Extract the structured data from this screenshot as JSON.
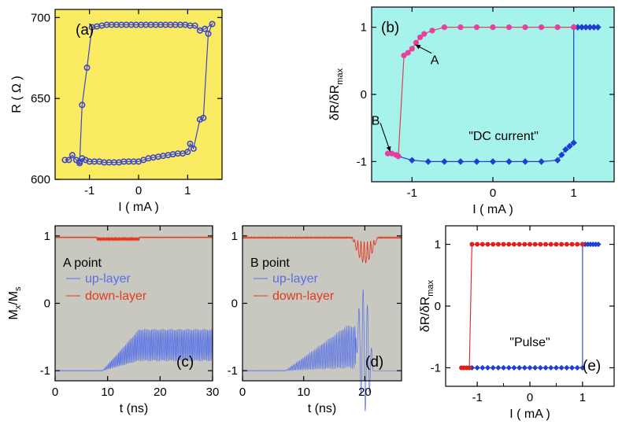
{
  "chart_data": [
    {
      "id": "a",
      "type": "scatter",
      "panel_label": "(a)",
      "xlabel": "I ( mA )",
      "ylabel": "R ( Ω )",
      "xlim": [
        -1.7,
        1.7
      ],
      "ylim": [
        600,
        705
      ],
      "x_ticks": [
        -1,
        0,
        1
      ],
      "y_ticks": [
        600,
        650,
        700
      ],
      "background": "#fbeb63",
      "marker_color": "#3c46c8",
      "series": [
        {
          "values": [
            [
              -1.5,
              612
            ],
            [
              -1.42,
              612
            ],
            [
              -1.35,
              615
            ],
            [
              -1.27,
              612
            ],
            [
              -1.2,
              610
            ],
            [
              -1.15,
              613
            ],
            [
              -1.08,
              612
            ],
            [
              -1.0,
              611
            ],
            [
              -0.9,
              611
            ],
            [
              -0.8,
              611
            ],
            [
              -0.7,
              610.5
            ],
            [
              -0.6,
              610.5
            ],
            [
              -0.5,
              610.5
            ],
            [
              -0.4,
              610.5
            ],
            [
              -0.3,
              611
            ],
            [
              -0.2,
              611
            ],
            [
              -0.1,
              611
            ],
            [
              0.0,
              611
            ],
            [
              0.1,
              612
            ],
            [
              0.2,
              613
            ],
            [
              0.3,
              613.5
            ],
            [
              0.4,
              614
            ],
            [
              0.5,
              614.5
            ],
            [
              0.6,
              615
            ],
            [
              0.7,
              615.5
            ],
            [
              0.8,
              616
            ],
            [
              0.9,
              616
            ],
            [
              1.0,
              617
            ],
            [
              1.05,
              622
            ],
            [
              1.12,
              619
            ],
            [
              1.25,
              637
            ],
            [
              1.32,
              638
            ],
            [
              1.42,
              690
            ],
            [
              1.5,
              696
            ],
            [
              1.35,
              693
            ],
            [
              1.25,
              692
            ],
            [
              1.15,
              695
            ],
            [
              1.05,
              695
            ],
            [
              0.95,
              695.5
            ],
            [
              0.85,
              695.5
            ],
            [
              0.75,
              695.5
            ],
            [
              0.65,
              695.5
            ],
            [
              0.55,
              695.5
            ],
            [
              0.45,
              695.5
            ],
            [
              0.35,
              695.5
            ],
            [
              0.25,
              695.5
            ],
            [
              0.15,
              695.5
            ],
            [
              0.05,
              695.5
            ],
            [
              -0.05,
              695.5
            ],
            [
              -0.15,
              695.5
            ],
            [
              -0.25,
              695.5
            ],
            [
              -0.35,
              695.5
            ],
            [
              -0.45,
              695.5
            ],
            [
              -0.55,
              695.5
            ],
            [
              -0.65,
              695.5
            ],
            [
              -0.75,
              695
            ],
            [
              -0.85,
              694.5
            ],
            [
              -0.95,
              694
            ],
            [
              -1.05,
              669
            ],
            [
              -1.15,
              646
            ],
            [
              -1.2,
              611
            ]
          ]
        }
      ]
    },
    {
      "id": "b",
      "type": "line",
      "panel_label": "(b)",
      "xlabel": "I ( mA )",
      "ylabel": "δR/δR",
      "ylabel_sub": "max",
      "xlim": [
        -1.5,
        1.5
      ],
      "ylim": [
        -1.3,
        1.3
      ],
      "x_ticks": [
        -1,
        0,
        1
      ],
      "y_ticks": [
        -1,
        0,
        1
      ],
      "background": "#a6f3ec",
      "annotations": [
        {
          "text": "A",
          "x": -0.72,
          "y": 0.45,
          "arrow_to": [
            -0.96,
            0.74
          ]
        },
        {
          "text": "B",
          "x": -1.45,
          "y": -0.45,
          "arrow_to": [
            -1.27,
            -0.85
          ]
        },
        {
          "text": "\"DC current\"",
          "x": -0.3,
          "y": -0.68
        }
      ],
      "series": [
        {
          "color": "#e8409a",
          "line_color": "#e04050",
          "marker": "circle",
          "values": [
            [
              -1.3,
              -0.88
            ],
            [
              -1.25,
              -0.88
            ],
            [
              -1.2,
              -0.9
            ],
            [
              -1.17,
              -0.92
            ],
            [
              -1.1,
              0.58
            ],
            [
              -1.05,
              0.62
            ],
            [
              -1.0,
              0.68
            ],
            [
              -0.95,
              0.77
            ],
            [
              -0.9,
              0.85
            ],
            [
              -0.85,
              0.9
            ],
            [
              -0.75,
              0.95
            ],
            [
              -0.6,
              1.0
            ],
            [
              -0.4,
              1.0
            ],
            [
              -0.2,
              1.0
            ],
            [
              0.0,
              1.0
            ],
            [
              0.2,
              1.0
            ],
            [
              0.4,
              1.0
            ],
            [
              0.6,
              1.0
            ],
            [
              0.8,
              1.0
            ],
            [
              1.0,
              1.0
            ]
          ]
        },
        {
          "color": "#1f3fd0",
          "line_color": "#1f3fd0",
          "marker": "diamond",
          "values": [
            [
              -1.17,
              -0.92
            ],
            [
              -1.0,
              -0.98
            ],
            [
              -0.8,
              -1.0
            ],
            [
              -0.6,
              -1.0
            ],
            [
              -0.4,
              -1.0
            ],
            [
              -0.2,
              -1.0
            ],
            [
              0.0,
              -1.0
            ],
            [
              0.2,
              -1.0
            ],
            [
              0.4,
              -1.0
            ],
            [
              0.6,
              -1.0
            ],
            [
              0.8,
              -0.98
            ],
            [
              0.85,
              -0.9
            ],
            [
              0.9,
              -0.82
            ],
            [
              0.95,
              -0.77
            ],
            [
              1.0,
              -0.72
            ],
            [
              1.0,
              1.0
            ],
            [
              1.05,
              1.0
            ],
            [
              1.1,
              1.0
            ],
            [
              1.15,
              1.0
            ],
            [
              1.2,
              1.0
            ],
            [
              1.25,
              1.0
            ],
            [
              1.3,
              1.0
            ]
          ]
        }
      ]
    },
    {
      "id": "c",
      "type": "line",
      "panel_label": "(c)",
      "point_label": "A point",
      "xlabel": "t (ns)",
      "ylabel": "M",
      "ylabel_sub1": "x",
      "ylabel_mid": "/M",
      "ylabel_sub2": "s",
      "xlim": [
        0,
        30
      ],
      "ylim": [
        -1.15,
        1.15
      ],
      "x_ticks": [
        0,
        10,
        20,
        30
      ],
      "y_ticks": [
        -1,
        0,
        1
      ],
      "background": "#c8c8c0",
      "series": [
        {
          "name": "up-layer",
          "color": "#5570e8",
          "behavior": "oscillation growing from -1 (t≈10) to a band around -0.4 to -0.85 (t≥16)"
        },
        {
          "name": "down-layer",
          "color": "#e23a1e",
          "behavior": "near 1 with small ripple, slight dip around t≈12"
        }
      ]
    },
    {
      "id": "d",
      "type": "line",
      "panel_label": "(d)",
      "point_label": "B point",
      "xlabel": "t (ns)",
      "xlim": [
        0,
        26
      ],
      "ylim": [
        -1.15,
        1.15
      ],
      "x_ticks": [
        0,
        10,
        20
      ],
      "y_ticks": [
        -1,
        0,
        1
      ],
      "background": "#c8c8c0",
      "series": [
        {
          "name": "up-layer",
          "color": "#5570e8",
          "behavior": "oscillation growing from -1 to around -0.3, switching near t≈20 with large excursions to ~0.5"
        },
        {
          "name": "down-layer",
          "color": "#e23a1e",
          "behavior": "near 1, dips around t≈19-21 then returns"
        }
      ]
    },
    {
      "id": "e",
      "type": "line",
      "panel_label": "(e)",
      "xlabel": "I ( mA )",
      "ylabel": "δR/δR",
      "ylabel_sub": "max",
      "xlim": [
        -1.6,
        1.6
      ],
      "ylim": [
        -1.3,
        1.3
      ],
      "x_ticks": [
        -1,
        0,
        1
      ],
      "x_minor_ticks": [
        -0.5,
        0.5
      ],
      "y_ticks": [
        -1,
        0,
        1
      ],
      "annotations": [
        {
          "text": "\"Pulse\"",
          "x": 0.0,
          "y": -0.65
        }
      ],
      "series": [
        {
          "color": "#e02020",
          "marker": "circle",
          "values": [
            [
              -1.3,
              -1.0
            ],
            [
              -1.25,
              -1.0
            ],
            [
              -1.2,
              -1.0
            ],
            [
              -1.15,
              -1.0
            ],
            [
              -1.1,
              1.0
            ],
            [
              -1.0,
              1.0
            ],
            [
              -0.9,
              1.0
            ],
            [
              -0.8,
              1.0
            ],
            [
              -0.7,
              1.0
            ],
            [
              -0.6,
              1.0
            ],
            [
              -0.5,
              1.0
            ],
            [
              -0.4,
              1.0
            ],
            [
              -0.3,
              1.0
            ],
            [
              -0.2,
              1.0
            ],
            [
              -0.1,
              1.0
            ],
            [
              0.0,
              1.0
            ],
            [
              0.1,
              1.0
            ],
            [
              0.2,
              1.0
            ],
            [
              0.3,
              1.0
            ],
            [
              0.4,
              1.0
            ],
            [
              0.5,
              1.0
            ],
            [
              0.6,
              1.0
            ],
            [
              0.7,
              1.0
            ],
            [
              0.8,
              1.0
            ],
            [
              0.9,
              1.0
            ],
            [
              1.0,
              1.0
            ]
          ]
        },
        {
          "color": "#1f3fd0",
          "marker": "diamond",
          "values": [
            [
              -1.1,
              -1.0
            ],
            [
              -1.0,
              -1.0
            ],
            [
              -0.9,
              -1.0
            ],
            [
              -0.8,
              -1.0
            ],
            [
              -0.7,
              -1.0
            ],
            [
              -0.6,
              -1.0
            ],
            [
              -0.5,
              -1.0
            ],
            [
              -0.4,
              -1.0
            ],
            [
              -0.3,
              -1.0
            ],
            [
              -0.2,
              -1.0
            ],
            [
              -0.1,
              -1.0
            ],
            [
              0.0,
              -1.0
            ],
            [
              0.1,
              -1.0
            ],
            [
              0.2,
              -1.0
            ],
            [
              0.3,
              -1.0
            ],
            [
              0.4,
              -1.0
            ],
            [
              0.5,
              -1.0
            ],
            [
              0.6,
              -1.0
            ],
            [
              0.7,
              -1.0
            ],
            [
              0.8,
              -1.0
            ],
            [
              0.9,
              -1.0
            ],
            [
              1.0,
              -1.0
            ],
            [
              1.0,
              1.0
            ],
            [
              1.05,
              1.0
            ],
            [
              1.1,
              1.0
            ],
            [
              1.15,
              1.0
            ],
            [
              1.2,
              1.0
            ],
            [
              1.25,
              1.0
            ],
            [
              1.3,
              1.0
            ]
          ]
        }
      ]
    }
  ]
}
